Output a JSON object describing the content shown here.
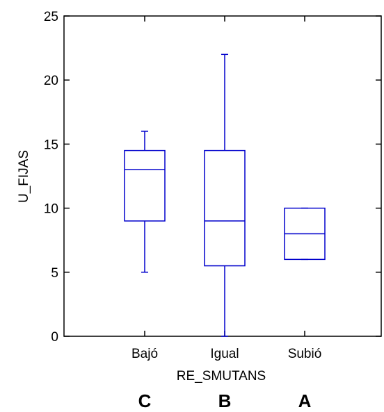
{
  "chart_data": {
    "type": "boxplot",
    "xlabel": "RE_SMUTANS",
    "ylabel": "U_FIJAS",
    "ylim": [
      0,
      25
    ],
    "yticks": [
      0,
      5,
      10,
      15,
      20,
      25
    ],
    "categories": [
      "Bajó",
      "Igual",
      "Subió"
    ],
    "boxes": [
      {
        "category": "Bajó",
        "min": 5,
        "q1": 9,
        "median": 13,
        "q3": 14.5,
        "max": 16
      },
      {
        "category": "Igual",
        "min": 0,
        "q1": 5.5,
        "median": 9,
        "q3": 14.5,
        "max": 22
      },
      {
        "category": "Subió",
        "min": 6,
        "q1": 6,
        "median": 8,
        "q3": 10,
        "max": 10
      }
    ],
    "group_letters": [
      "C",
      "B",
      "A"
    ],
    "grid": false,
    "box_color": "#0000cc",
    "axis_color": "#000000"
  }
}
